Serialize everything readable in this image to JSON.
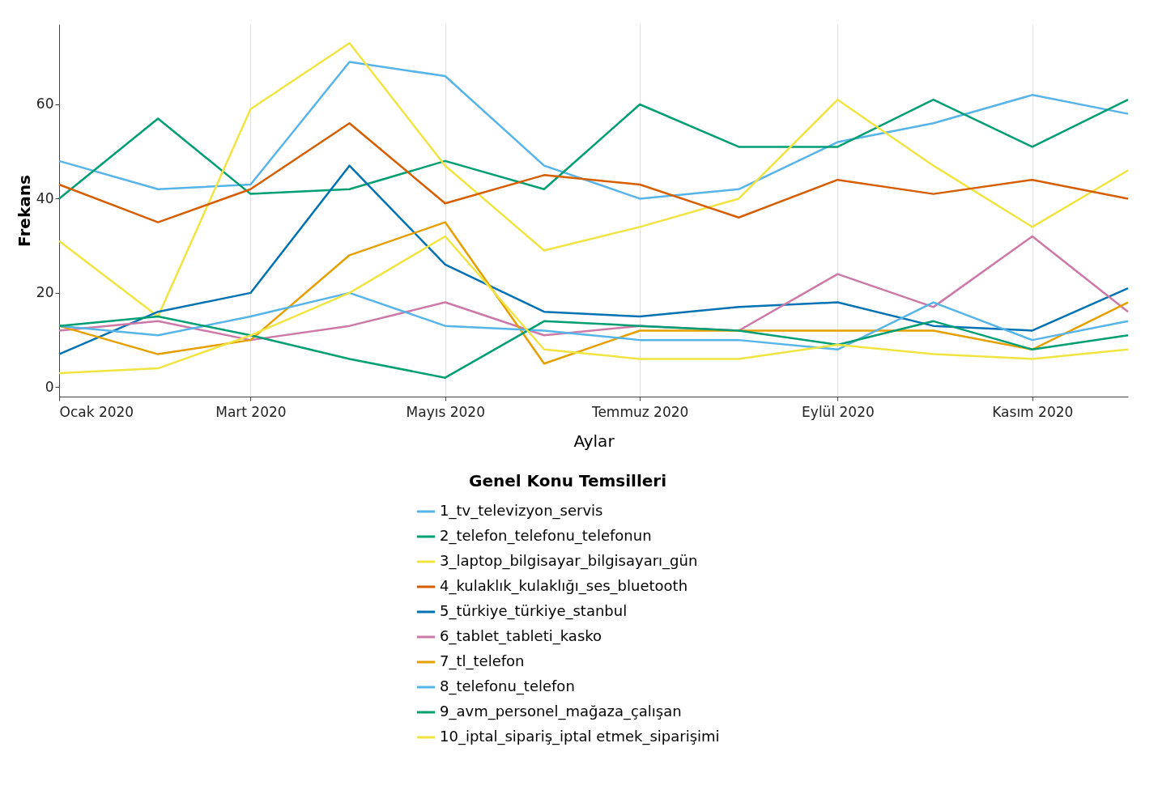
{
  "chart_data": {
    "type": "line",
    "xlabel": "Aylar",
    "ylabel": "Frekans",
    "legend_title": "Genel Konu Temsilleri",
    "legend": "bottom",
    "grid": "x",
    "marker": "none",
    "line_style": "solid",
    "x": [
      "2020-01",
      "2020-02",
      "2020-03",
      "2020-04",
      "2020-05",
      "2020-06",
      "2020-07",
      "2020-08",
      "2020-09",
      "2020-10",
      "2020-11",
      "2020-12"
    ],
    "xlim": [
      "2020-01",
      "2020-12"
    ],
    "xticks": [
      {
        "value": "2020-01",
        "label": "Ocak 2020"
      },
      {
        "value": "2020-03",
        "label": "Mart 2020"
      },
      {
        "value": "2020-05",
        "label": "Mayıs 2020"
      },
      {
        "value": "2020-07",
        "label": "Temmuz 2020"
      },
      {
        "value": "2020-09",
        "label": "Eylül 2020"
      },
      {
        "value": "2020-11",
        "label": "Kasım 2020"
      }
    ],
    "ylim": [
      -2,
      77
    ],
    "yticks": [
      0,
      20,
      40,
      60
    ],
    "series": [
      {
        "name": "1_tv_televizyon_servis",
        "color": "#56b4e9",
        "values": [
          48,
          42,
          43,
          69,
          66,
          47,
          40,
          42,
          52,
          56,
          62,
          58
        ]
      },
      {
        "name": "2_telefon_telefonu_telefonun",
        "color": "#009e73",
        "values": [
          40,
          57,
          41,
          42,
          48,
          42,
          60,
          51,
          51,
          61,
          51,
          61
        ]
      },
      {
        "name": "3_laptop_bilgisayar_bilgisayarı_gün",
        "color": "#f0e442",
        "values": [
          31,
          15,
          59,
          73,
          47,
          29,
          34,
          40,
          61,
          47,
          34,
          46
        ]
      },
      {
        "name": "4_kulaklık_kulaklığı_ses_bluetooth",
        "color": "#d55e00",
        "values": [
          43,
          35,
          42,
          56,
          39,
          45,
          43,
          36,
          44,
          41,
          44,
          40
        ]
      },
      {
        "name": "5_türkiye_türkiye_stanbul",
        "color": "#0072b2",
        "values": [
          7,
          16,
          20,
          47,
          26,
          16,
          15,
          17,
          18,
          13,
          12,
          21
        ]
      },
      {
        "name": "6_tablet_tableti_kasko",
        "color": "#cc79a7",
        "values": [
          12,
          14,
          10,
          13,
          18,
          11,
          13,
          12,
          24,
          17,
          32,
          16
        ]
      },
      {
        "name": "7_tl_telefon",
        "color": "#e69f00",
        "values": [
          13,
          7,
          10,
          28,
          35,
          5,
          12,
          12,
          12,
          12,
          8,
          18
        ]
      },
      {
        "name": "8_telefonu_telefon",
        "color": "#56b4e9",
        "values": [
          13,
          11,
          15,
          20,
          13,
          12,
          10,
          10,
          8,
          18,
          10,
          14
        ]
      },
      {
        "name": "9_avm_personel_mağaza_çalışan",
        "color": "#009e73",
        "values": [
          13,
          15,
          11,
          6,
          2,
          14,
          13,
          12,
          9,
          14,
          8,
          11
        ]
      },
      {
        "name": "10_iptal_sipariş_iptal etmek_siparişimi",
        "color": "#f0e442",
        "values": [
          3,
          4,
          11,
          20,
          32,
          8,
          6,
          6,
          9,
          7,
          6,
          8
        ]
      }
    ]
  }
}
